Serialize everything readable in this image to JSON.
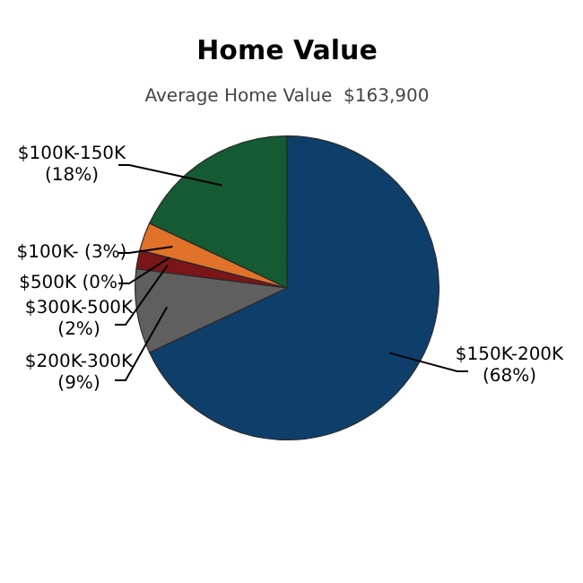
{
  "chart_data": {
    "type": "pie",
    "title": "Home Value",
    "subtitle": "Average Home Value  $163,900",
    "categories": [
      "$150K-200K",
      "$200K-300K",
      "$300K-500K",
      "$500K",
      "$100K-",
      "$100K-150K"
    ],
    "values": [
      68,
      9,
      2,
      0,
      3,
      18
    ],
    "value_labels": [
      "(68%)",
      "(9%)",
      "(2%)",
      "(0%)",
      "(3%)",
      "(18%)"
    ],
    "colors": [
      "#0e3f6b",
      "#5f5f5f",
      "#7a1518",
      "#9a2a20",
      "#e0722a",
      "#145a32"
    ],
    "legend": false
  }
}
